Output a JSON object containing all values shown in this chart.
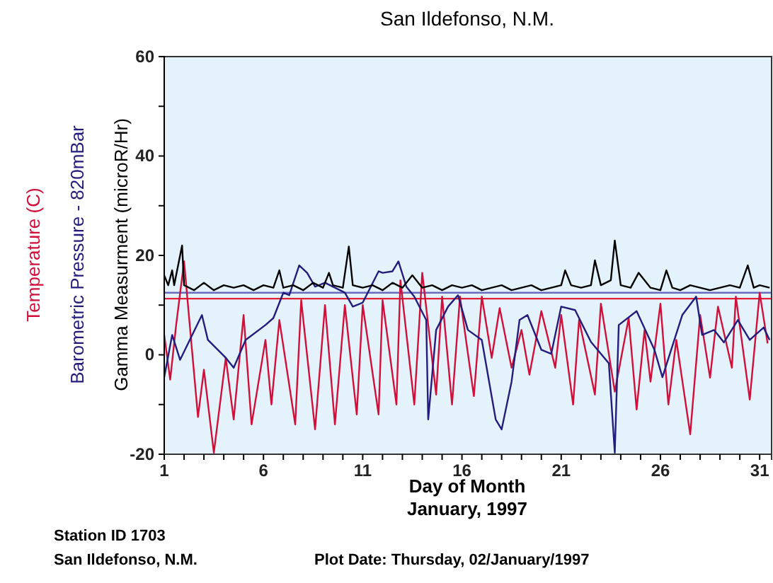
{
  "chart_data": {
    "type": "line",
    "title": "San Ildefonso, N.M.",
    "xlabel": "Day of Month\nJanuary, 1997",
    "xlim": [
      1,
      31.6
    ],
    "ylim": [
      -20,
      60
    ],
    "xticks": [
      1,
      {
        "value": 2,
        "label": null
      },
      {
        "value": 3,
        "label": null
      },
      {
        "value": 4,
        "label": null
      },
      {
        "value": 5,
        "label": null
      },
      6,
      {
        "value": 7,
        "label": null
      },
      {
        "value": 8,
        "label": null
      },
      {
        "value": 9,
        "label": null
      },
      {
        "value": 10,
        "label": null
      },
      11,
      {
        "value": 12,
        "label": null
      },
      {
        "value": 13,
        "label": null
      },
      {
        "value": 14,
        "label": null
      },
      {
        "value": 15,
        "label": null
      },
      16,
      {
        "value": 17,
        "label": null
      },
      {
        "value": 18,
        "label": null
      },
      {
        "value": 19,
        "label": null
      },
      {
        "value": 20,
        "label": null
      },
      21,
      {
        "value": 22,
        "label": null
      },
      {
        "value": 23,
        "label": null
      },
      {
        "value": 24,
        "label": null
      },
      {
        "value": 25,
        "label": null
      },
      26,
      {
        "value": 27,
        "label": null
      },
      {
        "value": 28,
        "label": null
      },
      {
        "value": 29,
        "label": null
      },
      {
        "value": 30,
        "label": null
      },
      31
    ],
    "yticks": [
      -20,
      {
        "value": -10,
        "label": null
      },
      0,
      {
        "value": 10,
        "label": null
      },
      20,
      {
        "value": 30,
        "label": null
      },
      40,
      {
        "value": 50,
        "label": null
      },
      60
    ],
    "legend": "left",
    "grid": false,
    "marker": "none",
    "line_style": "solid",
    "series": [
      {
        "name": "Temperature (C)",
        "color": "#d0103a",
        "x": [
          1,
          1.3,
          1.6,
          2.0,
          2.7,
          3.0,
          3.5,
          4.1,
          4.5,
          5.0,
          5.4,
          6.1,
          6.4,
          6.8,
          7.6,
          7.9,
          8.6,
          9.1,
          9.6,
          10.1,
          10.7,
          11.0,
          11.8,
          12.0,
          12.7,
          12.9,
          13.6,
          14.0,
          14.7,
          15.0,
          15.5,
          15.9,
          16.6,
          17.0,
          17.5,
          17.9,
          18.5,
          19.0,
          19.4,
          20.0,
          20.7,
          21.0,
          21.6,
          21.9,
          22.7,
          23.0,
          23.7,
          24.4,
          24.8,
          25.2,
          25.5,
          26.0,
          26.4,
          26.8,
          27.5,
          28.0,
          28.5,
          28.9,
          29.6,
          29.8,
          30.5,
          31.0,
          31.4
        ],
        "values": [
          4,
          -5,
          6,
          18.8,
          -12.5,
          -3,
          -19.7,
          -0.6,
          -13,
          8,
          -14,
          3,
          -10,
          7,
          -14,
          11,
          -15,
          10,
          -14,
          10,
          -12,
          10,
          -12,
          11,
          -10,
          15,
          -10,
          16.5,
          -8,
          11.7,
          -10,
          11.7,
          -8.3,
          11.7,
          -0.6,
          9.4,
          -2.6,
          5,
          -4,
          8.8,
          -2.6,
          8,
          -10,
          7,
          -8,
          10.3,
          -7.4,
          7.4,
          -11,
          5,
          -5.4,
          10.3,
          -10,
          3,
          -16,
          8,
          -4.6,
          9.7,
          -2.6,
          11.7,
          -9,
          12.5,
          2.3
        ]
      },
      {
        "name": "Barometric Pressure - 820mBar",
        "color": "#241c7c",
        "x": [
          1,
          1.4,
          1.8,
          2.9,
          3.2,
          4.1,
          4.5,
          5.1,
          6.1,
          6.5,
          7,
          7.3,
          7.8,
          8.2,
          8.6,
          9.1,
          10.1,
          10.5,
          11,
          11.8,
          12,
          12.5,
          12.8,
          13.2,
          13.6,
          14.2,
          14.3,
          14.7,
          15.3,
          15.8,
          16.3,
          17,
          17.7,
          18,
          18.5,
          18.9,
          19.3,
          20,
          20.5,
          21,
          21.7,
          22.5,
          23.4,
          23.7,
          23.9,
          24.8,
          25.7,
          26.1,
          27.1,
          27.8,
          28.1,
          28.7,
          29.2,
          29.9,
          30.5,
          31.2,
          31.5
        ],
        "values": [
          -4.5,
          4,
          -1,
          8,
          3,
          -0.6,
          -2.6,
          3,
          6,
          7.4,
          12.5,
          12,
          18,
          16.5,
          13.7,
          14.5,
          12.5,
          9.7,
          10.5,
          16.8,
          16.5,
          16.8,
          18.8,
          13.7,
          11.7,
          7,
          -13,
          5,
          9.7,
          12,
          5,
          3,
          -13,
          -15,
          -5.4,
          7,
          8,
          1,
          0.2,
          9.7,
          9,
          2.6,
          -1.7,
          -19.7,
          6,
          8.8,
          1,
          -4.5,
          8,
          11.7,
          4,
          5,
          2.5,
          7,
          3,
          5.5,
          3
        ]
      },
      {
        "name": "Gamma Measurment (microR/Hr)",
        "color": "#000000",
        "x": [
          1,
          1.2,
          1.4,
          1.5,
          1.9,
          2.0,
          2.5,
          3,
          3.5,
          4,
          4.5,
          5,
          5.5,
          6,
          6.5,
          6.8,
          7,
          7.5,
          8,
          8.5,
          9,
          9.3,
          9.5,
          10,
          10.3,
          10.5,
          11,
          11.5,
          12,
          12.5,
          13,
          13.5,
          14,
          14.5,
          15,
          15.5,
          16,
          16.5,
          17,
          17.5,
          18,
          18.5,
          19,
          19.5,
          20,
          20.5,
          21,
          21.2,
          21.5,
          22,
          22.5,
          22.7,
          23,
          23.5,
          23.7,
          24,
          24.5,
          24.9,
          25.5,
          26,
          26.3,
          26.6,
          27,
          27.5,
          28,
          28.5,
          29,
          29.5,
          30,
          30.4,
          30.7,
          31,
          31.5
        ],
        "values": [
          16,
          14,
          17,
          14,
          22,
          14,
          13,
          14.5,
          13,
          14,
          13.5,
          14,
          13,
          14,
          13.5,
          17,
          13.5,
          14,
          13,
          14.5,
          13.5,
          16.5,
          14,
          13.5,
          21.8,
          14,
          13.5,
          14,
          13,
          14.5,
          13.5,
          16,
          13.5,
          14,
          13,
          14,
          13.5,
          14,
          13,
          13.5,
          14,
          13,
          13.5,
          14,
          13,
          13.5,
          14,
          17,
          14,
          13.5,
          14,
          19,
          14,
          15,
          23,
          14,
          13.5,
          16.5,
          13.5,
          13,
          17,
          13.5,
          13,
          14,
          13.5,
          13,
          13.5,
          14,
          13.5,
          18,
          13.5,
          14,
          13.5
        ]
      }
    ],
    "ref_lines": [
      {
        "axis": "y",
        "value": 12.5,
        "color": "#6a6ac0"
      },
      {
        "axis": "y",
        "value": 11.3,
        "color": "#e0203a"
      }
    ],
    "annotations": [
      "Station ID 1703",
      "San Ildefonso, N.M.",
      "Plot Date: Thursday, 02/January/1997"
    ]
  }
}
